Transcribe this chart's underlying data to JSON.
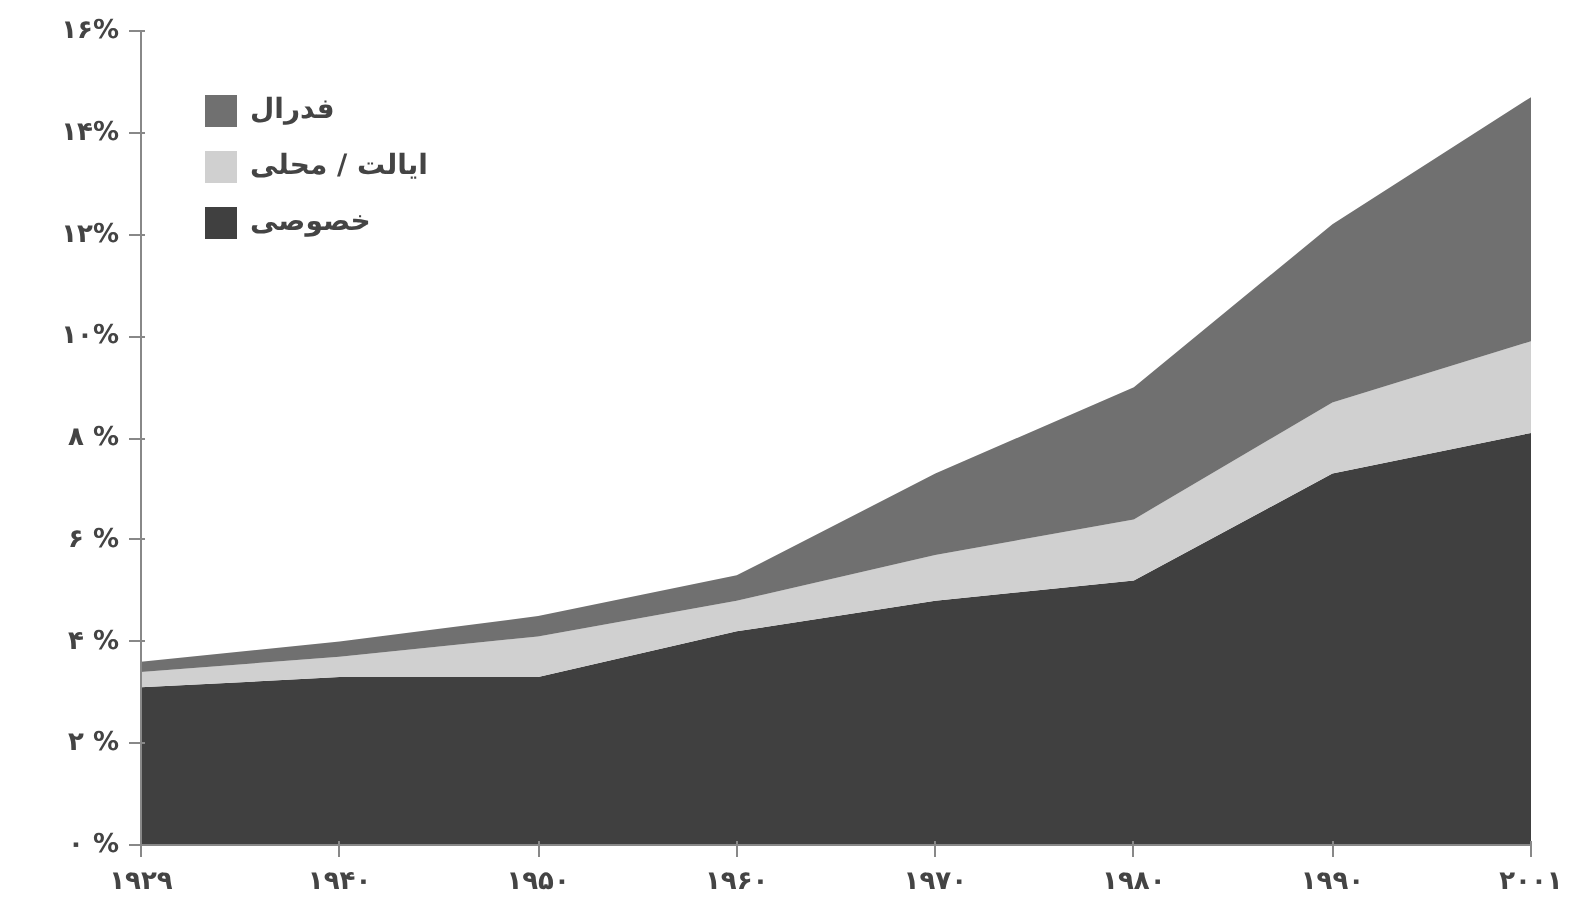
{
  "chart_data": {
    "type": "area",
    "stacked": true,
    "categories": [
      "۱۹۲۹",
      "۱۹۴۰",
      "۱۹۵۰",
      "۱۹۶۰",
      "۱۹۷۰",
      "۱۹۸۰",
      "۱۹۹۰",
      "۲۰۰۱"
    ],
    "series": [
      {
        "name": "خصوصی",
        "color": "#404040",
        "values": [
          3.1,
          3.3,
          3.3,
          4.2,
          4.8,
          5.2,
          7.3,
          8.1
        ]
      },
      {
        "name": "ایالت / محلی",
        "color": "#d0d0d0",
        "values": [
          0.3,
          0.4,
          0.8,
          0.6,
          0.9,
          1.2,
          1.4,
          1.8
        ]
      },
      {
        "name": "فدرال",
        "color": "#707070",
        "values": [
          0.2,
          0.3,
          0.4,
          0.5,
          1.6,
          2.6,
          3.5,
          4.8
        ]
      }
    ],
    "ylim": [
      0,
      16
    ],
    "yticks": [
      {
        "value": 0,
        "label": "۰ %"
      },
      {
        "value": 2,
        "label": "۲ %"
      },
      {
        "value": 4,
        "label": "۴ %"
      },
      {
        "value": 6,
        "label": "۶ %"
      },
      {
        "value": 8,
        "label": "۸ %"
      },
      {
        "value": 10,
        "label": "۱۰%"
      },
      {
        "value": 12,
        "label": "۱۲%"
      },
      {
        "value": 14,
        "label": "۱۴%"
      },
      {
        "value": 16,
        "label": "۱۶%"
      }
    ],
    "grid": false,
    "legend": "top left"
  }
}
